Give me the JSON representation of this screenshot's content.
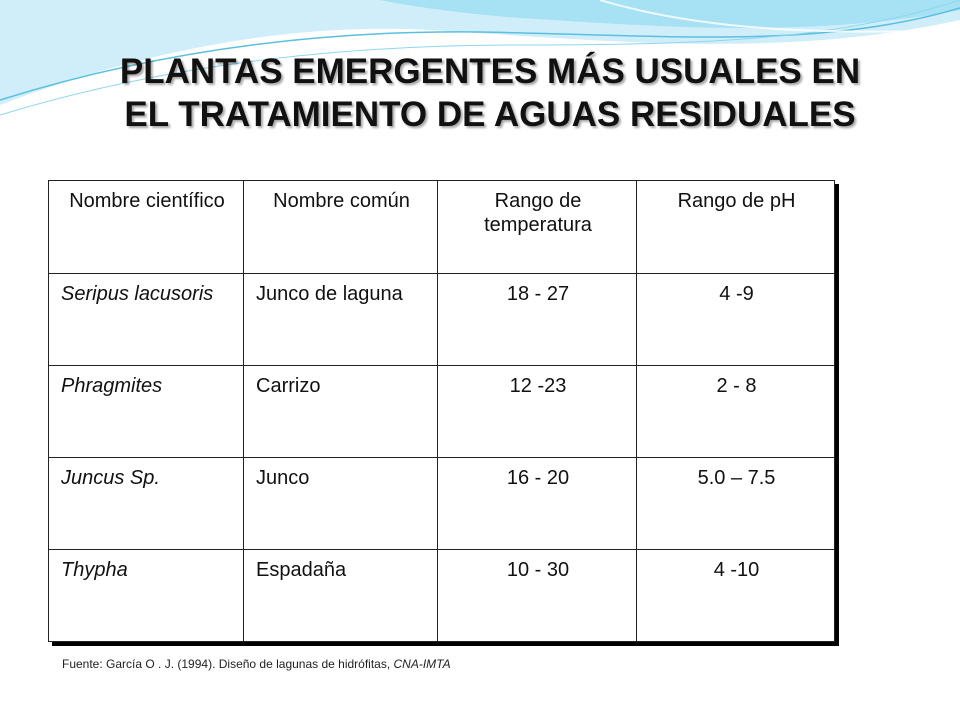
{
  "title": {
    "line1": "PLANTAS EMERGENTES MÁS USUALES EN",
    "line2": "EL TRATAMIENTO DE AGUAS RESIDUALES"
  },
  "table": {
    "headers": [
      "Nombre científico",
      "Nombre común",
      "Rango de temperatura",
      "Rango de pH"
    ],
    "rows": [
      {
        "scientific": "Seripus lacusoris",
        "common": "Junco de laguna",
        "temperature": "18 - 27",
        "ph": "4 -9"
      },
      {
        "scientific": "Phragmites",
        "common": "Carrizo",
        "temperature": "12 -23",
        "ph": "2 - 8"
      },
      {
        "scientific": "Juncus Sp.",
        "common": "Junco",
        "temperature": "16 - 20",
        "ph": "5.0 – 7.5"
      },
      {
        "scientific": "Thypha",
        "common": "Espadaña",
        "temperature": "10 - 30",
        "ph": "4 -10"
      }
    ]
  },
  "source": {
    "text": "Fuente: García O . J. (1994). Diseño de lagunas de hidrófitas, ",
    "italic": "CNA-IMTA"
  },
  "colors": {
    "wave_light": "#cfeefa",
    "wave_mid": "#8fd6ef",
    "wave_line": "#5bbfe0"
  }
}
